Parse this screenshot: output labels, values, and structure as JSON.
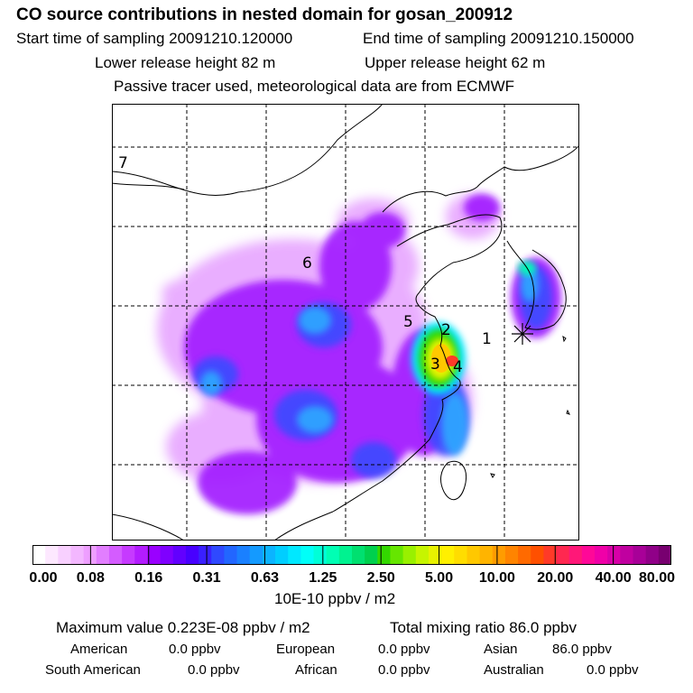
{
  "header": {
    "title": "CO  source contributions in nested domain for gosan_200912",
    "start_time": "Start time of sampling 20091210.120000",
    "end_time": "End time of sampling 20091210.150000",
    "lower_release": "Lower release height   82 m",
    "upper_release": "Upper release height   62 m",
    "tracer_note": "Passive tracer used, meteorological data are from ECMWF"
  },
  "map": {
    "region_labels": [
      "1",
      "2",
      "3",
      "4",
      "5",
      "6",
      "7"
    ],
    "receptor_marker": "asterisk"
  },
  "colorbar": {
    "tick_labels": [
      "0.00",
      "0.08",
      "0.16",
      "0.31",
      "0.63",
      "1.25",
      "2.50",
      "5.00",
      "10.00",
      "20.00",
      "40.00",
      "80.00"
    ],
    "colors": [
      "#ffffff",
      "#fde8ff",
      "#f8d0ff",
      "#f3b7ff",
      "#ee9fff",
      "#e27eff",
      "#d45cff",
      "#c63aff",
      "#b31cff",
      "#9a00ff",
      "#7f00ff",
      "#6200ff",
      "#4800ff",
      "#3a20ff",
      "#2f49ff",
      "#2266ff",
      "#1a80ff",
      "#149aff",
      "#0bb4ff",
      "#00ceff",
      "#00e8ff",
      "#00fff8",
      "#00ffd8",
      "#00ffb4",
      "#00f290",
      "#00e070",
      "#00d04e",
      "#33d800",
      "#66e600",
      "#99f000",
      "#c6f500",
      "#e8f200",
      "#fff000",
      "#ffdd00",
      "#ffc800",
      "#ffb400",
      "#ff9c00",
      "#ff8400",
      "#ff6a00",
      "#ff5000",
      "#ff3a28",
      "#ff2850",
      "#ff1878",
      "#ff0898",
      "#f000a8",
      "#d800a8",
      "#c000a0",
      "#a80098",
      "#900088",
      "#780070"
    ],
    "units": "10E-10 ppbv / m2"
  },
  "stats": {
    "maximum": "Maximum value  0.223E-08 ppbv / m2",
    "total": "Total mixing ratio       86.0 ppbv",
    "american_label": "American",
    "american_value": "0.0 ppbv",
    "european_label": "European",
    "european_value": "0.0 ppbv",
    "asian_label": "Asian",
    "asian_value": "86.0 ppbv",
    "south_american_label": "South American",
    "south_american_value": "0.0 ppbv",
    "african_label": "African",
    "african_value": "0.0 ppbv",
    "australian_label": "Australian",
    "australian_value": "0.0 ppbv"
  }
}
